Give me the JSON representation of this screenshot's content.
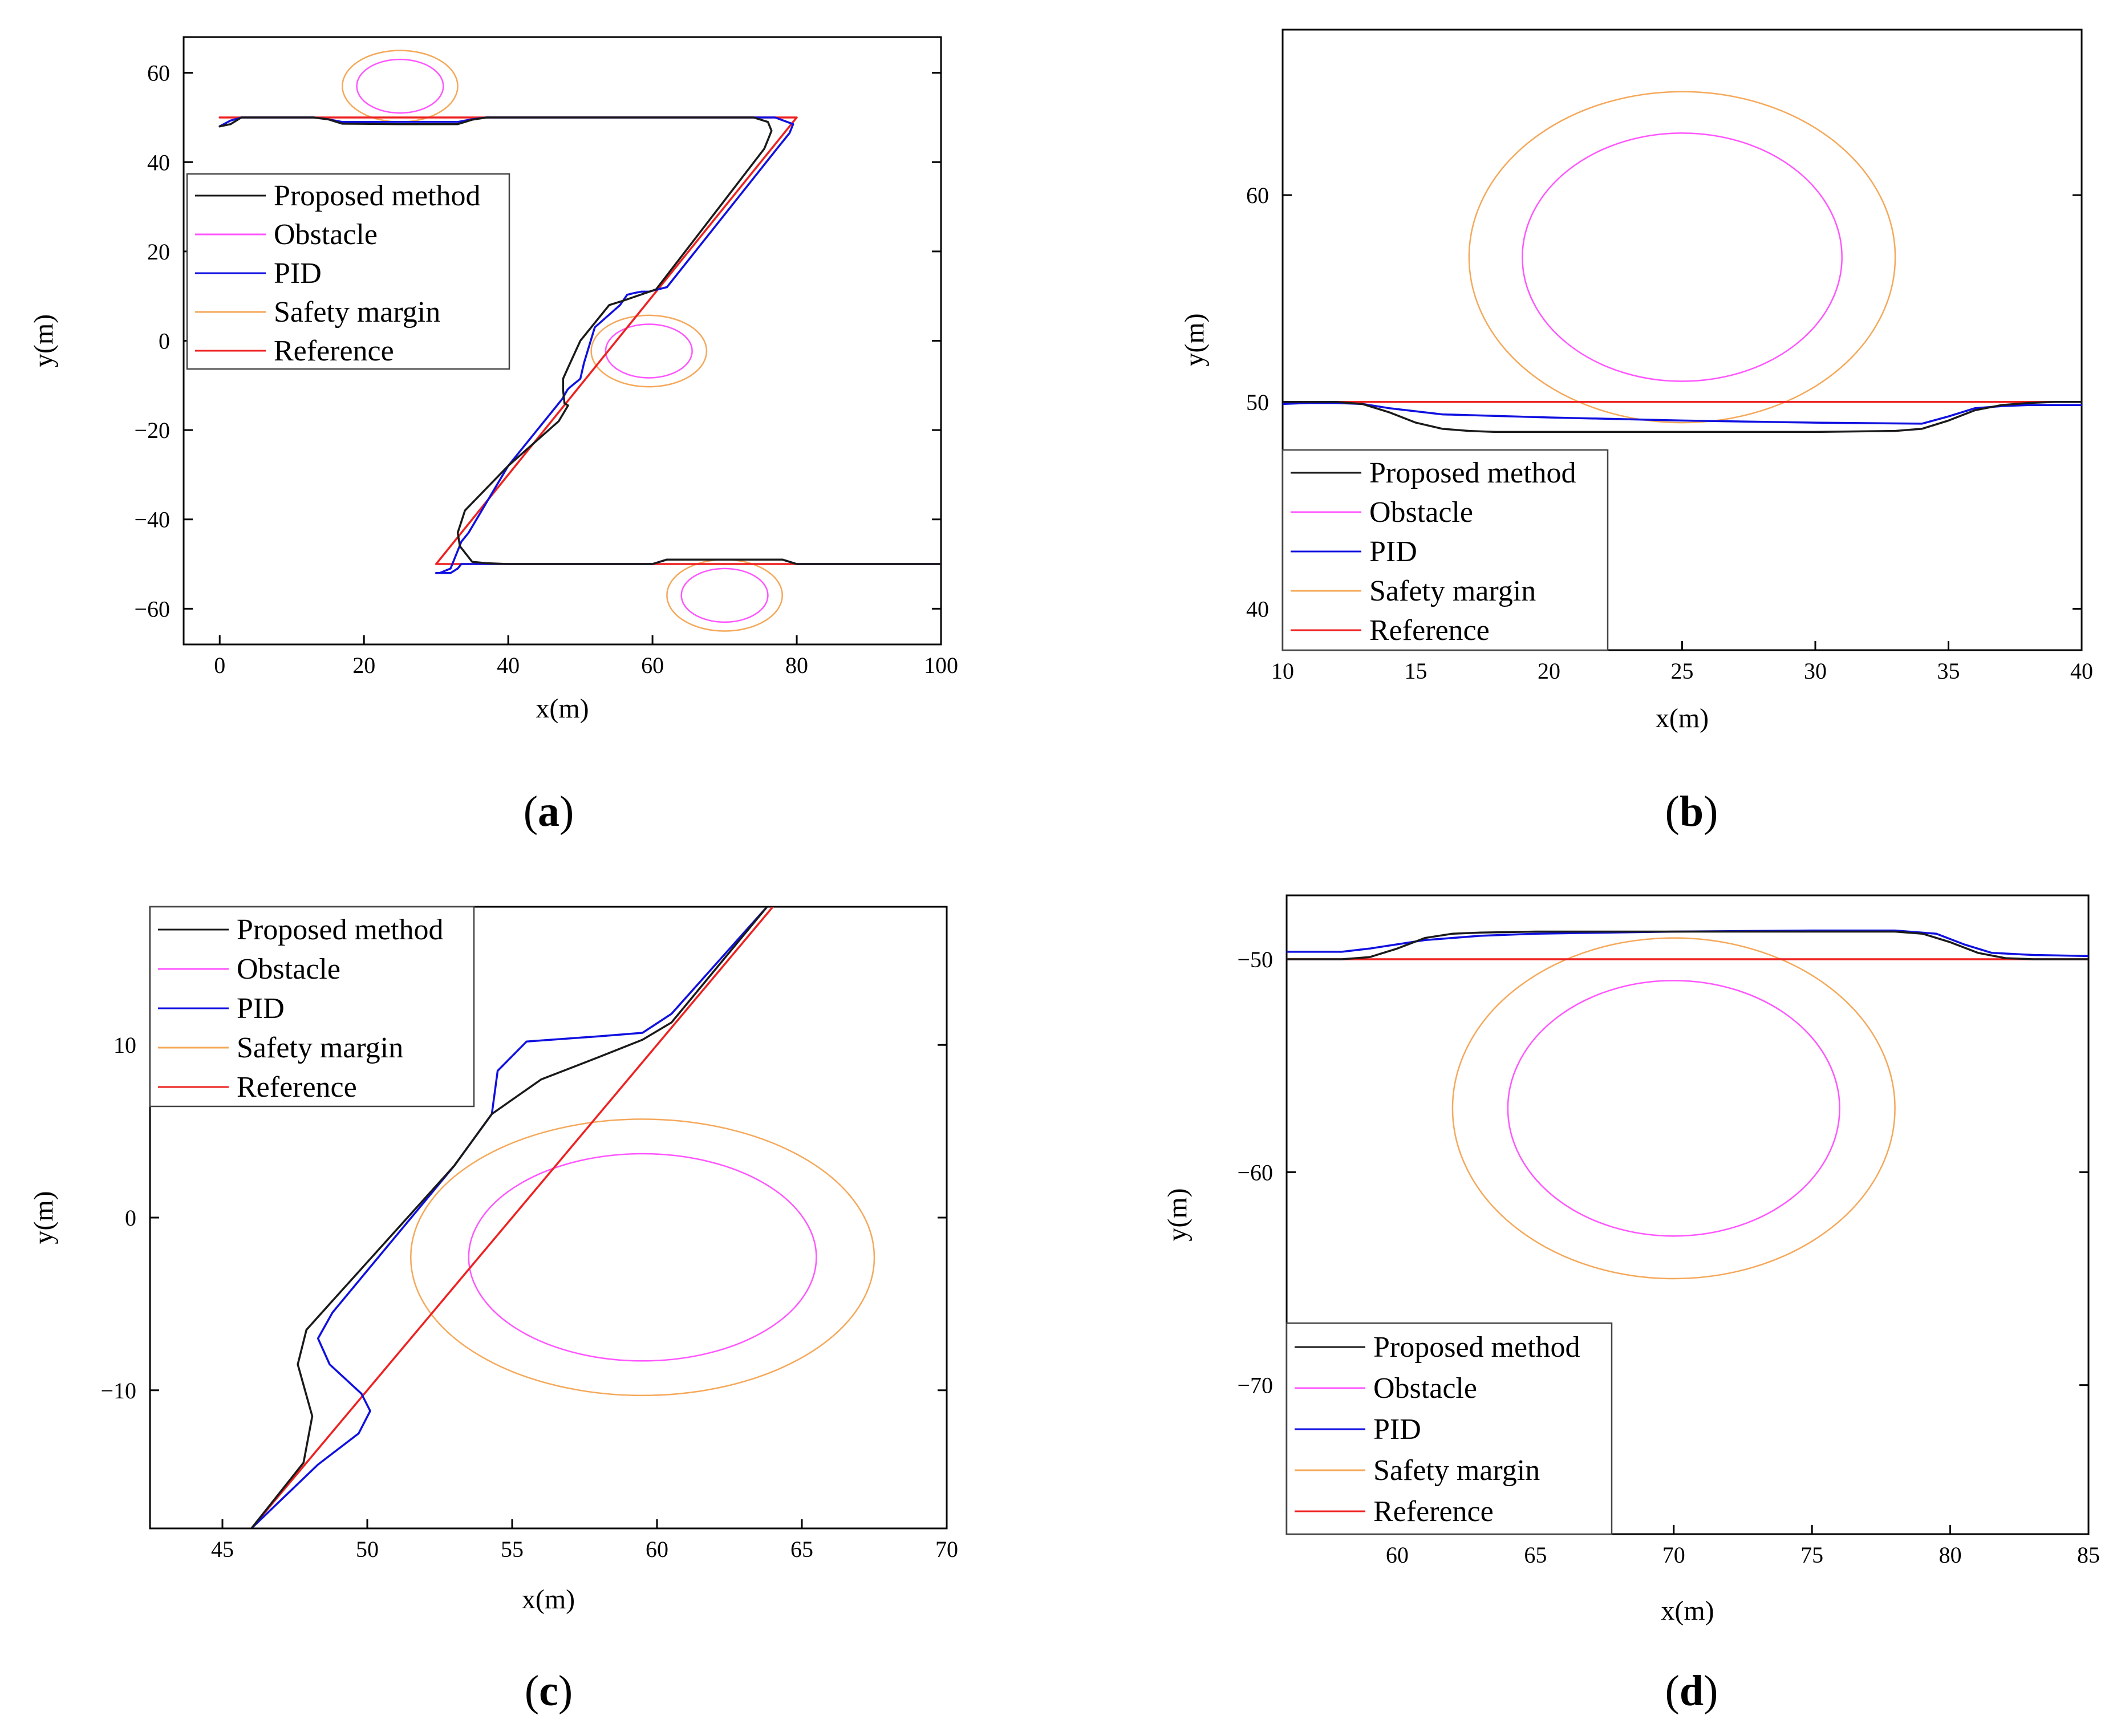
{
  "figure": {
    "colors": {
      "proposed": "#1a1a1a",
      "obstacle": "#ff55ff",
      "pid": "#1010e0",
      "safety": "#f5a85a",
      "reference": "#ee2222"
    }
  },
  "chart_data": [
    {
      "id": "a",
      "panel_label": "a",
      "type": "line",
      "xlabel": "x(m)",
      "ylabel": "y(m)",
      "xlim": [
        -5,
        100
      ],
      "ylim": [
        -68,
        68
      ],
      "xticks": [
        0,
        20,
        40,
        60,
        80,
        100
      ],
      "yticks": [
        -60,
        -40,
        -20,
        0,
        20,
        40,
        60
      ],
      "xtick_labels": [
        "0",
        "20",
        "40",
        "60",
        "80",
        "100"
      ],
      "ytick_labels": [
        "−60",
        "−40",
        "−20",
        "0",
        "20",
        "40",
        "60"
      ],
      "legend": {
        "position": "upper-left-center",
        "entries": [
          {
            "label": "Proposed method",
            "series": "proposed"
          },
          {
            "label": "Obstacle",
            "series": "obstacle"
          },
          {
            "label": "PID",
            "series": "pid"
          },
          {
            "label": "Safety margin",
            "series": "safety"
          },
          {
            "label": "Reference",
            "series": "reference"
          }
        ]
      },
      "obstacles": [
        {
          "name": "obstacle-1",
          "center": [
            25,
            57
          ],
          "r_obstacle": 6,
          "r_safety": 8
        },
        {
          "name": "obstacle-2",
          "center": [
            59.5,
            -2.3
          ],
          "r_obstacle": 6,
          "r_safety": 8
        },
        {
          "name": "obstacle-3",
          "center": [
            70,
            -57
          ],
          "r_obstacle": 6,
          "r_safety": 8
        }
      ],
      "series": [
        {
          "name": "Reference",
          "key": "reference",
          "x": [
            0,
            80,
            30,
            100
          ],
          "y": [
            50,
            50,
            -50,
            -50
          ]
        },
        {
          "name": "PID",
          "key": "pid",
          "x": [
            0,
            1.5,
            3,
            13,
            15,
            17,
            25,
            33,
            35,
            37,
            40,
            60,
            77,
            79.5,
            79,
            77.5,
            62,
            59.5,
            58.5,
            57.5,
            56.5,
            55.5,
            52,
            50.5,
            50,
            48.5,
            48.2,
            47.5,
            46.5,
            40,
            34.5,
            33.5,
            33,
            32,
            30.5,
            30,
            32,
            33,
            33.5,
            34,
            35,
            45,
            60,
            62,
            70,
            78,
            80,
            100
          ],
          "y": [
            48,
            49.3,
            50,
            50,
            49.6,
            49,
            49,
            49,
            49.6,
            50,
            50,
            50,
            50,
            48.5,
            46.5,
            43.5,
            12,
            11,
            11,
            10.7,
            10.3,
            8,
            3,
            -5,
            -8.5,
            -10.5,
            -11,
            -13,
            -15,
            -28,
            -43,
            -45,
            -47,
            -51,
            -52,
            -52,
            -52,
            -51,
            -50,
            -50,
            -50,
            -50,
            -50,
            -49,
            -49,
            -49,
            -50,
            -50
          ]
        },
        {
          "name": "Proposed method",
          "key": "proposed",
          "x": [
            0,
            1.5,
            3,
            13,
            15,
            17,
            25,
            33,
            35,
            37,
            40,
            60,
            74,
            76,
            76.5,
            76,
            75.5,
            60.5,
            56,
            54,
            50,
            48.3,
            47.6,
            47.6,
            47.8,
            48.3,
            47,
            40,
            34,
            33,
            33.3,
            35,
            37,
            40,
            60,
            62,
            70,
            78,
            80,
            100
          ],
          "y": [
            48,
            48.5,
            50,
            50,
            49.6,
            48.6,
            48.5,
            48.5,
            49.5,
            50,
            50,
            50,
            50,
            49,
            47,
            45,
            43,
            11.5,
            9,
            8,
            0,
            -6,
            -8.5,
            -11,
            -14,
            -14.5,
            -18,
            -28,
            -38,
            -43,
            -46,
            -49.5,
            -49.8,
            -50,
            -50,
            -49,
            -49,
            -49,
            -50,
            -50
          ]
        }
      ]
    },
    {
      "id": "b",
      "panel_label": "b",
      "type": "line",
      "xlabel": "x(m)",
      "ylabel": "y(m)",
      "xlim": [
        10,
        40
      ],
      "ylim": [
        38,
        68
      ],
      "xticks": [
        10,
        15,
        20,
        25,
        30,
        35,
        40
      ],
      "yticks": [
        40,
        50,
        60
      ],
      "xtick_labels": [
        "10",
        "15",
        "20",
        "25",
        "30",
        "35",
        "40"
      ],
      "ytick_labels": [
        "40",
        "50",
        "60"
      ],
      "legend": {
        "position": "lower-left",
        "entries": [
          {
            "label": "Proposed method",
            "series": "proposed"
          },
          {
            "label": "Obstacle",
            "series": "obstacle"
          },
          {
            "label": "PID",
            "series": "pid"
          },
          {
            "label": "Safety margin",
            "series": "safety"
          },
          {
            "label": "Reference",
            "series": "reference"
          }
        ]
      },
      "obstacles": [
        {
          "name": "obstacle-1",
          "center": [
            25,
            57
          ],
          "r_obstacle": 6,
          "r_safety": 8
        }
      ],
      "series": [
        {
          "name": "Reference",
          "key": "reference",
          "x": [
            10,
            40
          ],
          "y": [
            50,
            50
          ]
        },
        {
          "name": "PID",
          "key": "pid",
          "x": [
            10,
            11,
            12,
            13,
            14,
            16,
            20,
            25,
            30,
            34,
            35,
            36,
            37,
            38,
            40
          ],
          "y": [
            49.9,
            49.95,
            49.95,
            49.9,
            49.7,
            49.4,
            49.25,
            49.1,
            49,
            48.95,
            49.3,
            49.7,
            49.8,
            49.85,
            49.85
          ]
        },
        {
          "name": "Proposed method",
          "key": "proposed",
          "x": [
            10,
            12,
            13,
            14,
            15,
            16,
            17,
            18,
            20,
            25,
            30,
            33,
            34,
            35,
            36,
            37,
            38,
            39,
            40
          ],
          "y": [
            50,
            50,
            49.9,
            49.5,
            49,
            48.7,
            48.6,
            48.55,
            48.55,
            48.55,
            48.55,
            48.6,
            48.7,
            49.1,
            49.6,
            49.85,
            49.95,
            50,
            50
          ]
        }
      ]
    },
    {
      "id": "c",
      "panel_label": "c",
      "type": "line",
      "xlabel": "x(m)",
      "ylabel": "y(m)",
      "xlim": [
        42.5,
        70
      ],
      "ylim": [
        -18,
        18
      ],
      "xticks": [
        45,
        50,
        55,
        60,
        65,
        70
      ],
      "yticks": [
        -10,
        0,
        10
      ],
      "xtick_labels": [
        "45",
        "50",
        "55",
        "60",
        "65",
        "70"
      ],
      "ytick_labels": [
        "−10",
        "0",
        "10"
      ],
      "legend": {
        "position": "upper-left",
        "entries": [
          {
            "label": "Proposed method",
            "series": "proposed"
          },
          {
            "label": "Obstacle",
            "series": "obstacle"
          },
          {
            "label": "PID",
            "series": "pid"
          },
          {
            "label": "Safety margin",
            "series": "safety"
          },
          {
            "label": "Reference",
            "series": "reference"
          }
        ]
      },
      "obstacles": [
        {
          "name": "obstacle-2",
          "center": [
            59.5,
            -2.3
          ],
          "r_obstacle": 6,
          "r_safety": 8
        }
      ],
      "series": [
        {
          "name": "Reference",
          "key": "reference",
          "x": [
            46,
            64
          ],
          "y": [
            -18,
            18
          ]
        },
        {
          "name": "PID",
          "key": "pid",
          "x": [
            46,
            48.3,
            49.7,
            50.1,
            49.8,
            48.7,
            48.3,
            48.8,
            53,
            54.3,
            54.5,
            55.5,
            58,
            59.5,
            60.5,
            63.8
          ],
          "y": [
            -18,
            -14.3,
            -12.5,
            -11.2,
            -10.2,
            -8.5,
            -7,
            -5.5,
            3,
            6,
            8.5,
            10.2,
            10.5,
            10.7,
            11.8,
            18
          ]
        },
        {
          "name": "Proposed method",
          "key": "proposed",
          "x": [
            46,
            47.8,
            48.1,
            47.6,
            47.9,
            48.7,
            53,
            54.3,
            56,
            58,
            59.5,
            60.5,
            63.8
          ],
          "y": [
            -18,
            -14.2,
            -11.5,
            -8.5,
            -6.5,
            -5,
            3,
            6,
            8,
            9.3,
            10.3,
            11.3,
            18
          ]
        }
      ]
    },
    {
      "id": "d",
      "panel_label": "d",
      "type": "line",
      "xlabel": "x(m)",
      "ylabel": "y(m)",
      "xlim": [
        56,
        85
      ],
      "ylim": [
        -77,
        -47
      ],
      "xticks": [
        60,
        65,
        70,
        75,
        80,
        85
      ],
      "yticks": [
        -70,
        -60,
        -50
      ],
      "xtick_labels": [
        "60",
        "65",
        "70",
        "75",
        "80",
        "85"
      ],
      "ytick_labels": [
        "−70",
        "−60",
        "−50"
      ],
      "legend": {
        "position": "lower-left",
        "entries": [
          {
            "label": "Proposed method",
            "series": "proposed"
          },
          {
            "label": "Obstacle",
            "series": "obstacle"
          },
          {
            "label": "PID",
            "series": "pid"
          },
          {
            "label": "Safety margin",
            "series": "safety"
          },
          {
            "label": "Reference",
            "series": "reference"
          }
        ]
      },
      "obstacles": [
        {
          "name": "obstacle-3",
          "center": [
            70,
            -57
          ],
          "r_obstacle": 6,
          "r_safety": 8
        }
      ],
      "series": [
        {
          "name": "Reference",
          "key": "reference",
          "x": [
            56,
            85
          ],
          "y": [
            -50,
            -50
          ]
        },
        {
          "name": "PID",
          "key": "pid",
          "x": [
            56,
            58,
            59,
            61,
            63,
            65,
            70,
            75,
            78,
            79.5,
            80.5,
            81.5,
            83,
            85
          ],
          "y": [
            -49.65,
            -49.65,
            -49.5,
            -49.1,
            -48.9,
            -48.8,
            -48.7,
            -48.65,
            -48.65,
            -48.8,
            -49.3,
            -49.7,
            -49.8,
            -49.85
          ]
        },
        {
          "name": "Proposed method",
          "key": "proposed",
          "x": [
            56,
            58,
            59,
            60,
            61,
            62,
            63,
            65,
            70,
            75,
            78,
            79,
            80,
            81,
            82,
            83,
            85
          ],
          "y": [
            -50,
            -50,
            -49.9,
            -49.5,
            -49,
            -48.8,
            -48.75,
            -48.7,
            -48.7,
            -48.7,
            -48.7,
            -48.8,
            -49.2,
            -49.7,
            -49.95,
            -50,
            -50
          ]
        }
      ]
    }
  ]
}
